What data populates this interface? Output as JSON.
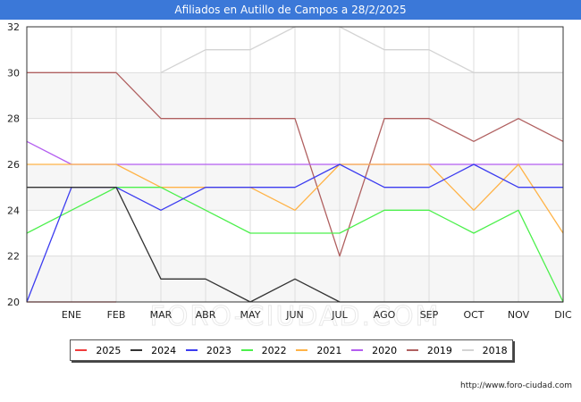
{
  "title": "Afiliados en Autillo de Campos a 28/2/2025",
  "source": "http://www.foro-ciudad.com",
  "watermark": "FORO-CIUDAD.COM",
  "chart_data": {
    "type": "line",
    "title": "Afiliados en Autillo de Campos a 28/2/2025",
    "xlabel": "",
    "ylabel": "",
    "x": [
      "",
      "ENE",
      "FEB",
      "MAR",
      "ABR",
      "MAY",
      "JUN",
      "JUL",
      "AGO",
      "SEP",
      "OCT",
      "NOV",
      "DIC"
    ],
    "ylim": [
      20,
      32
    ],
    "yticks": [
      20,
      22,
      24,
      26,
      28,
      30,
      32
    ],
    "grid": true,
    "legend_position": "bottom",
    "series": [
      {
        "name": "2018",
        "color": "#d3d3d3",
        "values": [
          null,
          null,
          null,
          30,
          31,
          31,
          32,
          32,
          31,
          31,
          30,
          30,
          30
        ]
      },
      {
        "name": "2019",
        "color": "#b06060",
        "values": [
          30,
          30,
          30,
          28,
          28,
          28,
          28,
          22,
          28,
          28,
          27,
          28,
          27
        ]
      },
      {
        "name": "2020",
        "color": "#b45ef0",
        "values": [
          27,
          26,
          26,
          26,
          26,
          26,
          26,
          26,
          26,
          26,
          26,
          26,
          26
        ]
      },
      {
        "name": "2021",
        "color": "#ffb347",
        "values": [
          26,
          26,
          26,
          25,
          25,
          25,
          24,
          26,
          26,
          26,
          24,
          26,
          23
        ]
      },
      {
        "name": "2022",
        "color": "#4cf04c",
        "values": [
          23,
          24,
          25,
          25,
          24,
          23,
          23,
          23,
          24,
          24,
          23,
          24,
          20
        ]
      },
      {
        "name": "2023",
        "color": "#3c3cf0",
        "values": [
          20,
          25,
          25,
          24,
          25,
          25,
          25,
          26,
          25,
          25,
          26,
          25,
          25
        ]
      },
      {
        "name": "2024",
        "color": "#333333",
        "values": [
          25,
          25,
          25,
          21,
          21,
          20,
          21,
          20,
          20,
          20,
          20,
          20,
          20
        ]
      },
      {
        "name": "2025",
        "color": "#f03c3c",
        "values": [
          20,
          20,
          20,
          null,
          null,
          null,
          null,
          null,
          null,
          null,
          null,
          null,
          null
        ]
      }
    ]
  },
  "legend": [
    {
      "name": "2025",
      "color": "#f03c3c"
    },
    {
      "name": "2024",
      "color": "#333333"
    },
    {
      "name": "2023",
      "color": "#3c3cf0"
    },
    {
      "name": "2022",
      "color": "#4cf04c"
    },
    {
      "name": "2021",
      "color": "#ffb347"
    },
    {
      "name": "2020",
      "color": "#b45ef0"
    },
    {
      "name": "2019",
      "color": "#b06060"
    },
    {
      "name": "2018",
      "color": "#d3d3d3"
    }
  ]
}
